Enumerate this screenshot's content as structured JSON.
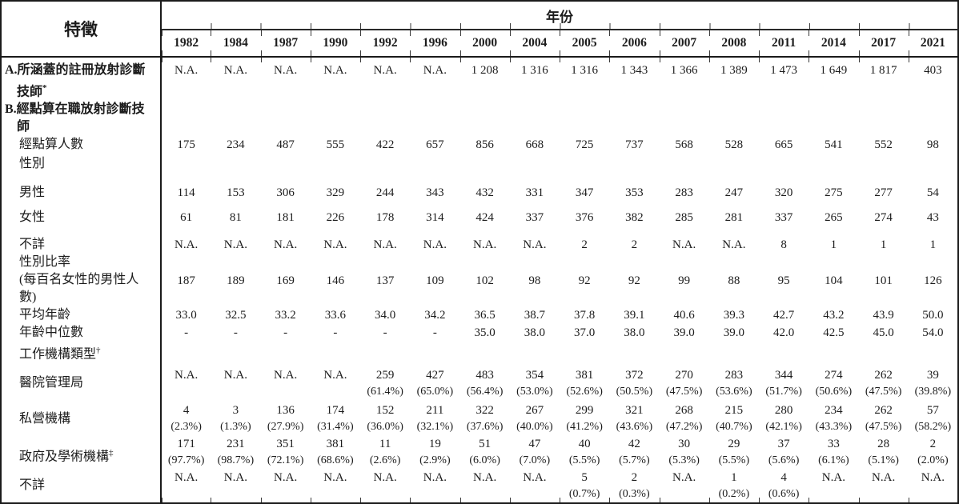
{
  "table": {
    "corner_header": "特徵",
    "year_header": "年份",
    "years": [
      "1982",
      "1984",
      "1987",
      "1990",
      "1992",
      "1996",
      "2000",
      "2004",
      "2005",
      "2006",
      "2007",
      "2008",
      "2011",
      "2014",
      "2017",
      "2021"
    ],
    "rows": [
      {
        "id": "row-a-registered-technologists",
        "cls": "rA",
        "bold": true,
        "hang": true,
        "label": "A.所涵蓋的註冊放射診斷技師",
        "sup": "*",
        "values": [
          "N.A.",
          "N.A.",
          "N.A.",
          "N.A.",
          "N.A.",
          "N.A.",
          "1 208",
          "1 316",
          "1 316",
          "1 343",
          "1 366",
          "1 389",
          "1 473",
          "1 649",
          "1 817",
          "403"
        ]
      },
      {
        "id": "row-b-enumerated-technologists",
        "cls": "rB",
        "bold": true,
        "hang": true,
        "label": "B.經點算在職放射診斷技師",
        "values": []
      },
      {
        "id": "row-enumerated-count",
        "cls": "rcount",
        "indent": true,
        "label": "經點算人數",
        "values": [
          "175",
          "234",
          "487",
          "555",
          "422",
          "657",
          "856",
          "668",
          "725",
          "737",
          "568",
          "528",
          "665",
          "541",
          "552",
          "98"
        ]
      },
      {
        "id": "row-sex-heading",
        "cls": "rsex",
        "indent": true,
        "label": "性別",
        "values": []
      },
      {
        "id": "row-male",
        "cls": "rmale",
        "indent": true,
        "label": "男性",
        "values": [
          "114",
          "153",
          "306",
          "329",
          "244",
          "343",
          "432",
          "331",
          "347",
          "353",
          "283",
          "247",
          "320",
          "275",
          "277",
          "54"
        ]
      },
      {
        "id": "row-female",
        "cls": "rfem",
        "indent": true,
        "label": "女性",
        "values": [
          "61",
          "81",
          "181",
          "226",
          "178",
          "314",
          "424",
          "337",
          "376",
          "382",
          "285",
          "281",
          "337",
          "265",
          "274",
          "43"
        ]
      },
      {
        "id": "row-sex-unknown",
        "cls": "runk",
        "indent": true,
        "label": "不詳",
        "values": [
          "N.A.",
          "N.A.",
          "N.A.",
          "N.A.",
          "N.A.",
          "N.A.",
          "N.A.",
          "N.A.",
          "2",
          "2",
          "N.A.",
          "N.A.",
          "8",
          "1",
          "1",
          "1"
        ]
      },
      {
        "id": "row-sex-ratio",
        "cls": "rratio",
        "indent": true,
        "label": "性別比率",
        "label2": "(每百名女性的男性人數)",
        "values": [
          "187",
          "189",
          "169",
          "146",
          "137",
          "109",
          "102",
          "98",
          "92",
          "92",
          "99",
          "88",
          "95",
          "104",
          "101",
          "126"
        ]
      },
      {
        "id": "row-mean-age",
        "cls": "ravg",
        "indent": true,
        "label": "平均年齡",
        "values": [
          "33.0",
          "32.5",
          "33.2",
          "33.6",
          "34.0",
          "34.2",
          "36.5",
          "38.7",
          "37.8",
          "39.1",
          "40.6",
          "39.3",
          "42.7",
          "43.2",
          "43.9",
          "50.0"
        ]
      },
      {
        "id": "row-median-age",
        "cls": "rmed",
        "indent": true,
        "label": "年齡中位數",
        "values": [
          "-",
          "-",
          "-",
          "-",
          "-",
          "-",
          "35.0",
          "38.0",
          "37.0",
          "38.0",
          "39.0",
          "39.0",
          "42.0",
          "42.5",
          "45.0",
          "54.0"
        ]
      },
      {
        "id": "row-worktype-heading",
        "cls": "rwork",
        "indent": true,
        "label": "工作機構類型",
        "sup": "†",
        "values": []
      },
      {
        "id": "row-hospital-authority",
        "cls": "rha",
        "indent": true,
        "label": "醫院管理局",
        "values": [
          {
            "n": "N.A.",
            "p": ""
          },
          {
            "n": "N.A.",
            "p": ""
          },
          {
            "n": "N.A.",
            "p": ""
          },
          {
            "n": "N.A.",
            "p": ""
          },
          {
            "n": "259",
            "p": "(61.4%)"
          },
          {
            "n": "427",
            "p": "(65.0%)"
          },
          {
            "n": "483",
            "p": "(56.4%)"
          },
          {
            "n": "354",
            "p": "(53.0%)"
          },
          {
            "n": "381",
            "p": "(52.6%)"
          },
          {
            "n": "372",
            "p": "(50.5%)"
          },
          {
            "n": "270",
            "p": "(47.5%)"
          },
          {
            "n": "283",
            "p": "(53.6%)"
          },
          {
            "n": "344",
            "p": "(51.7%)"
          },
          {
            "n": "274",
            "p": "(50.6%)"
          },
          {
            "n": "262",
            "p": "(47.5%)"
          },
          {
            "n": "39",
            "p": "(39.8%)"
          }
        ]
      },
      {
        "id": "row-private-sector",
        "cls": "rpriv",
        "indent": true,
        "label": "私營機構",
        "values": [
          {
            "n": "4",
            "p": "(2.3%)"
          },
          {
            "n": "3",
            "p": "(1.3%)"
          },
          {
            "n": "136",
            "p": "(27.9%)"
          },
          {
            "n": "174",
            "p": "(31.4%)"
          },
          {
            "n": "152",
            "p": "(36.0%)"
          },
          {
            "n": "211",
            "p": "(32.1%)"
          },
          {
            "n": "322",
            "p": "(37.6%)"
          },
          {
            "n": "267",
            "p": "(40.0%)"
          },
          {
            "n": "299",
            "p": "(41.2%)"
          },
          {
            "n": "321",
            "p": "(43.6%)"
          },
          {
            "n": "268",
            "p": "(47.2%)"
          },
          {
            "n": "215",
            "p": "(40.7%)"
          },
          {
            "n": "280",
            "p": "(42.1%)"
          },
          {
            "n": "234",
            "p": "(43.3%)"
          },
          {
            "n": "262",
            "p": "(47.5%)"
          },
          {
            "n": "57",
            "p": "(58.2%)"
          }
        ]
      },
      {
        "id": "row-government-academic",
        "cls": "rgov",
        "indent": true,
        "label": "政府及學術機構",
        "sup": "‡",
        "values": [
          {
            "n": "171",
            "p": "(97.7%)"
          },
          {
            "n": "231",
            "p": "(98.7%)"
          },
          {
            "n": "351",
            "p": "(72.1%)"
          },
          {
            "n": "381",
            "p": "(68.6%)"
          },
          {
            "n": "11",
            "p": "(2.6%)"
          },
          {
            "n": "19",
            "p": "(2.9%)"
          },
          {
            "n": "51",
            "p": "(6.0%)"
          },
          {
            "n": "47",
            "p": "(7.0%)"
          },
          {
            "n": "40",
            "p": "(5.5%)"
          },
          {
            "n": "42",
            "p": "(5.7%)"
          },
          {
            "n": "30",
            "p": "(5.3%)"
          },
          {
            "n": "29",
            "p": "(5.5%)"
          },
          {
            "n": "37",
            "p": "(5.6%)"
          },
          {
            "n": "33",
            "p": "(6.1%)"
          },
          {
            "n": "28",
            "p": "(5.1%)"
          },
          {
            "n": "2",
            "p": "(2.0%)"
          }
        ]
      },
      {
        "id": "row-worktype-unknown",
        "cls": "runk2",
        "indent": true,
        "label": "不詳",
        "values": [
          {
            "n": "N.A.",
            "p": ""
          },
          {
            "n": "N.A.",
            "p": ""
          },
          {
            "n": "N.A.",
            "p": ""
          },
          {
            "n": "N.A.",
            "p": ""
          },
          {
            "n": "N.A.",
            "p": ""
          },
          {
            "n": "N.A.",
            "p": ""
          },
          {
            "n": "N.A.",
            "p": ""
          },
          {
            "n": "N.A.",
            "p": ""
          },
          {
            "n": "5",
            "p": "(0.7%)"
          },
          {
            "n": "2",
            "p": "(0.3%)"
          },
          {
            "n": "N.A.",
            "p": ""
          },
          {
            "n": "1",
            "p": "(0.2%)"
          },
          {
            "n": "4",
            "p": "(0.6%)"
          },
          {
            "n": "N.A.",
            "p": ""
          },
          {
            "n": "N.A.",
            "p": ""
          },
          {
            "n": "N.A.",
            "p": ""
          }
        ]
      }
    ]
  }
}
